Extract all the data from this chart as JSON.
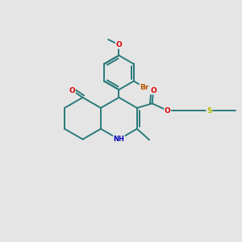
{
  "background_color": "#e5e5e5",
  "bond_color": "#2a7a7a",
  "bond_width": 1.4,
  "atom_colors": {
    "O": "#dd0000",
    "N": "#0000bb",
    "Br": "#bb5500",
    "S": "#bbbb00",
    "C": "#2a7a7a"
  },
  "font_size": 6.5,
  "fig_size": [
    3.0,
    3.0
  ],
  "dpi": 100
}
